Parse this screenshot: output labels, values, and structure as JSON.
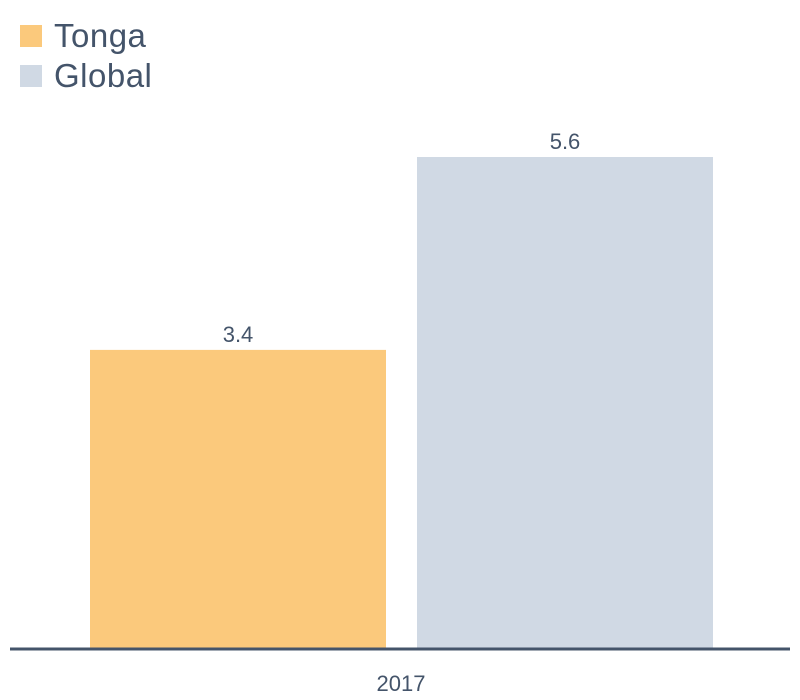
{
  "chart_data": {
    "type": "bar",
    "categories": [
      "2017"
    ],
    "series": [
      {
        "name": "Tonga",
        "values": [
          3.4
        ],
        "color": "#fbc97c"
      },
      {
        "name": "Global",
        "values": [
          5.6
        ],
        "color": "#d0d9e4"
      }
    ],
    "title": "",
    "xlabel": "",
    "ylabel": "",
    "ylim": [
      0,
      5.6
    ],
    "legend_position": "top-left",
    "grid": false,
    "axis_color": "#44546a"
  }
}
